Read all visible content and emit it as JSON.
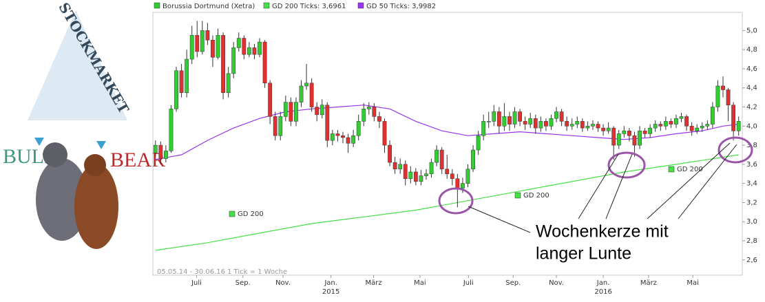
{
  "logo": {
    "top": "STOCKMARKET",
    "left": "BULL",
    "right": "BEAR"
  },
  "chart_data": {
    "type": "candlestick",
    "series_name": "Borussia Dortmund (Xetra)",
    "up_color": "#33cc33",
    "down_color": "#e03030",
    "open": [
      3.72,
      3.8,
      3.66,
      3.74,
      4.18,
      4.58,
      4.35,
      4.7,
      4.95,
      4.78,
      5.0,
      4.9,
      4.72,
      4.95,
      4.35,
      4.55,
      4.82,
      4.92,
      4.75,
      4.82,
      4.75,
      4.88,
      4.45,
      4.1,
      3.9,
      4.1,
      4.25,
      4.05,
      4.25,
      4.42,
      4.45,
      4.2,
      4.12,
      4.22,
      3.85,
      3.92,
      3.9,
      3.88,
      3.82,
      3.9,
      4.05,
      4.18,
      4.2,
      4.1,
      4.05,
      3.8,
      3.62,
      3.55,
      3.6,
      3.45,
      3.52,
      3.42,
      3.48,
      3.5,
      3.62,
      3.75,
      3.55,
      3.5,
      3.45,
      3.35,
      3.4,
      3.55,
      3.75,
      3.9,
      4.05,
      4.05,
      4.15,
      4.0,
      4.1,
      4.02,
      4.15,
      4.05,
      4.02,
      4.08,
      3.98,
      4.05,
      4.0,
      4.08,
      4.15,
      4.05,
      4.0,
      4.02,
      4.05,
      3.98,
      4.0,
      4.02,
      3.98,
      3.95,
      3.98,
      3.8,
      3.92,
      3.95,
      3.9,
      3.8,
      3.95,
      3.92,
      3.98,
      4.02,
      4.0,
      4.05,
      4.02,
      4.08,
      4.1,
      4.0,
      3.95,
      3.98,
      4.0,
      4.02,
      4.2,
      4.42,
      4.38,
      4.22,
      3.95
    ],
    "high": [
      3.85,
      3.84,
      3.8,
      4.22,
      4.62,
      4.65,
      4.8,
      5.05,
      5.1,
      5.1,
      5.08,
      4.95,
      5.02,
      4.98,
      4.62,
      4.88,
      4.98,
      4.95,
      4.88,
      4.86,
      4.92,
      4.9,
      4.48,
      4.15,
      4.15,
      4.32,
      4.3,
      4.3,
      4.48,
      4.65,
      4.5,
      4.25,
      4.28,
      4.25,
      3.96,
      3.96,
      3.94,
      3.92,
      3.96,
      4.12,
      4.24,
      4.25,
      4.24,
      4.15,
      4.08,
      3.85,
      3.68,
      3.66,
      3.64,
      3.58,
      3.56,
      3.54,
      3.55,
      3.66,
      3.8,
      3.78,
      3.7,
      3.55,
      3.5,
      3.46,
      3.6,
      3.8,
      3.95,
      4.12,
      4.15,
      4.22,
      4.2,
      4.24,
      4.15,
      4.2,
      4.18,
      4.1,
      4.14,
      4.12,
      4.1,
      4.08,
      4.12,
      4.2,
      4.18,
      4.1,
      4.08,
      4.1,
      4.08,
      4.05,
      4.06,
      4.05,
      4.02,
      4.04,
      4.0,
      3.96,
      4.0,
      3.98,
      3.94,
      4.0,
      3.98,
      4.02,
      4.06,
      4.05,
      4.1,
      4.08,
      4.12,
      4.14,
      4.12,
      4.04,
      4.02,
      4.04,
      4.06,
      4.25,
      4.48,
      4.52,
      4.4,
      4.25,
      4.1
    ],
    "low": [
      3.68,
      3.6,
      3.62,
      3.72,
      4.15,
      4.3,
      4.3,
      4.65,
      4.72,
      4.75,
      4.85,
      4.62,
      4.7,
      4.28,
      4.3,
      4.5,
      4.78,
      4.7,
      4.72,
      4.7,
      4.72,
      4.4,
      4.02,
      3.85,
      3.85,
      4.05,
      4.0,
      4.0,
      4.2,
      4.38,
      4.15,
      4.05,
      4.08,
      3.78,
      3.8,
      3.84,
      3.82,
      3.72,
      3.78,
      3.85,
      4.0,
      4.12,
      4.05,
      3.98,
      3.72,
      3.58,
      3.5,
      3.5,
      3.38,
      3.4,
      3.38,
      3.38,
      3.44,
      3.46,
      3.58,
      3.5,
      3.45,
      3.38,
      3.15,
      3.3,
      3.36,
      3.52,
      3.7,
      3.85,
      3.98,
      4.0,
      3.92,
      3.95,
      3.95,
      3.98,
      4.0,
      3.96,
      3.98,
      3.92,
      3.94,
      3.95,
      3.96,
      4.04,
      4.0,
      3.95,
      3.96,
      3.98,
      3.94,
      3.95,
      3.96,
      3.94,
      3.9,
      3.92,
      3.65,
      3.76,
      3.88,
      3.84,
      3.68,
      3.76,
      3.88,
      3.88,
      3.94,
      3.95,
      3.96,
      3.98,
      3.98,
      4.04,
      3.95,
      3.9,
      3.92,
      3.94,
      3.96,
      3.98,
      4.15,
      4.3,
      4.05,
      3.85,
      3.9
    ],
    "close": [
      3.8,
      3.66,
      3.74,
      4.18,
      4.58,
      4.35,
      4.7,
      4.95,
      4.78,
      5.0,
      4.9,
      4.72,
      4.95,
      4.35,
      4.55,
      4.82,
      4.92,
      4.75,
      4.82,
      4.75,
      4.88,
      4.45,
      4.1,
      3.9,
      4.1,
      4.25,
      4.05,
      4.25,
      4.42,
      4.45,
      4.2,
      4.12,
      4.22,
      3.85,
      3.92,
      3.9,
      3.88,
      3.82,
      3.9,
      4.05,
      4.18,
      4.2,
      4.1,
      4.05,
      3.8,
      3.62,
      3.55,
      3.6,
      3.45,
      3.52,
      3.42,
      3.48,
      3.5,
      3.62,
      3.75,
      3.55,
      3.5,
      3.45,
      3.35,
      3.4,
      3.55,
      3.75,
      3.9,
      4.05,
      4.05,
      4.15,
      4.0,
      4.1,
      4.02,
      4.15,
      4.05,
      4.02,
      4.08,
      3.98,
      4.05,
      4.0,
      4.08,
      4.15,
      4.05,
      4.0,
      4.02,
      4.05,
      3.98,
      4.0,
      4.02,
      3.98,
      3.95,
      3.98,
      3.8,
      3.92,
      3.95,
      3.9,
      3.8,
      3.95,
      3.92,
      3.98,
      4.02,
      4.0,
      4.05,
      4.02,
      4.08,
      4.1,
      4.0,
      3.95,
      3.98,
      4.0,
      4.02,
      4.2,
      4.42,
      4.38,
      4.22,
      3.95,
      4.05
    ],
    "overlays": [
      {
        "name": "GD 200 Ticks: 3,6961",
        "color": "#44e044",
        "line_labels": [
          "GD 200",
          "GD 200",
          "GD 200"
        ],
        "x": [
          0,
          10,
          20,
          30,
          40,
          50,
          60,
          70,
          80,
          90,
          100,
          112
        ],
        "values": [
          2.7,
          2.78,
          2.88,
          2.98,
          3.05,
          3.12,
          3.22,
          3.32,
          3.42,
          3.52,
          3.6,
          3.7
        ]
      },
      {
        "name": "GD 50 Ticks: 3,9982",
        "color": "#9933ee",
        "x": [
          0,
          5,
          10,
          15,
          20,
          25,
          30,
          35,
          40,
          45,
          50,
          55,
          60,
          65,
          70,
          75,
          80,
          85,
          90,
          95,
          100,
          105,
          109,
          112
        ],
        "values": [
          3.65,
          3.7,
          3.85,
          3.98,
          4.08,
          4.15,
          4.18,
          4.2,
          4.22,
          4.18,
          4.05,
          3.95,
          3.9,
          3.92,
          3.94,
          3.92,
          3.9,
          3.88,
          3.86,
          3.88,
          3.92,
          3.95,
          4.0,
          4.02
        ]
      }
    ],
    "xlim": [
      -0.5,
      112.7
    ],
    "xticks": [
      {
        "value": 7.9,
        "label": "Juli"
      },
      {
        "value": 16.8,
        "label": "Sep."
      },
      {
        "value": 24.5,
        "label": "Nov."
      },
      {
        "value": 33.7,
        "label": "Jan."
      },
      {
        "value": 41.9,
        "label": "März"
      },
      {
        "value": 50.8,
        "label": "Mai"
      },
      {
        "value": 60.1,
        "label": "Juli"
      },
      {
        "value": 68.7,
        "label": "Sep."
      },
      {
        "value": 77,
        "label": "Nov."
      },
      {
        "value": 86,
        "label": "Jan."
      },
      {
        "value": 94.7,
        "label": "März"
      },
      {
        "value": 103.2,
        "label": "Mai"
      }
    ],
    "year_labels": [
      {
        "value": 33.7,
        "label": "2015"
      },
      {
        "value": 86,
        "label": "2016"
      }
    ],
    "ylim": [
      2.44,
      5.19
    ],
    "yticks": [
      {
        "value": 2.6,
        "label": "2,6"
      },
      {
        "value": 2.8,
        "label": "2,8"
      },
      {
        "value": 3.0,
        "label": "3,0"
      },
      {
        "value": 3.2,
        "label": "3,2"
      },
      {
        "value": 3.4,
        "label": "3,4"
      },
      {
        "value": 3.6,
        "label": "3,6"
      },
      {
        "value": 3.8,
        "label": "3,8"
      },
      {
        "value": 4.0,
        "label": "4,0"
      },
      {
        "value": 4.2,
        "label": "4,2"
      },
      {
        "value": 4.4,
        "label": "4,4"
      },
      {
        "value": 4.6,
        "label": "4,6"
      },
      {
        "value": 4.8,
        "label": "4,8"
      },
      {
        "value": 5.0,
        "label": "5,0"
      }
    ],
    "grid": false,
    "range_label": "05.05.14 - 30.06.16",
    "tick_label": "1 Tick = 1 Woche",
    "annotation": [
      "Wochenkerze mit",
      "langer Lunte"
    ]
  }
}
